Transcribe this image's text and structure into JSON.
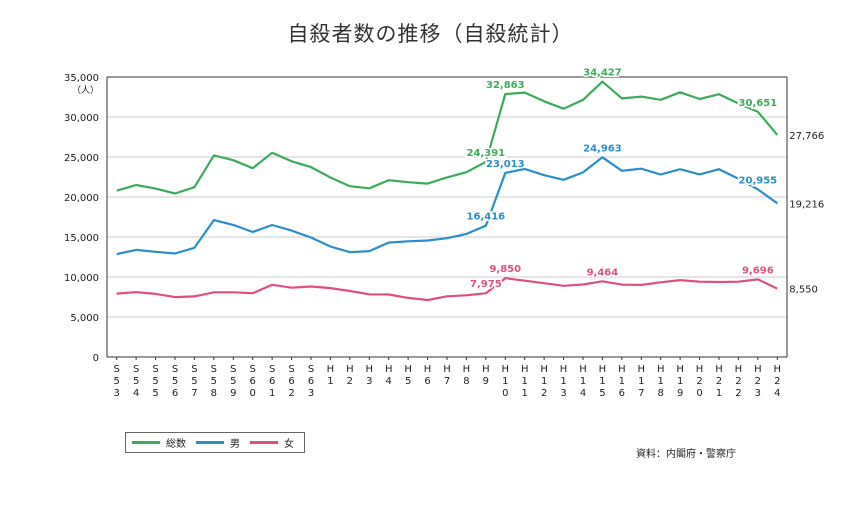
{
  "chart_data": {
    "type": "line",
    "title": "自殺者数の推移（自殺統計）",
    "ylabel": "（人）",
    "ylim": [
      0,
      35000
    ],
    "yticks": [
      "0",
      "5,000",
      "10,000",
      "15,000",
      "20,000",
      "25,000",
      "30,000",
      "35,000"
    ],
    "categories": [
      "S\n5\n3",
      "S\n5\n4",
      "S\n5\n5",
      "S\n5\n6",
      "S\n5\n7",
      "S\n5\n8",
      "S\n5\n9",
      "S\n6\n0",
      "S\n6\n1",
      "S\n6\n2",
      "S\n6\n3",
      "H\n1",
      "H\n2",
      "H\n3",
      "H\n4",
      "H\n5",
      "H\n6",
      "H\n7",
      "H\n8",
      "H\n9",
      "H\n1\n0",
      "H\n1\n1",
      "H\n1\n2",
      "H\n1\n3",
      "H\n1\n4",
      "H\n1\n5",
      "H\n1\n6",
      "H\n1\n7",
      "H\n1\n8",
      "H\n1\n9",
      "H\n2\n0",
      "H\n2\n1",
      "H\n2\n2",
      "H\n2\n3",
      "H\n2\n4"
    ],
    "series": [
      {
        "name": "総数",
        "color": "#3cab5b",
        "values": [
          20788,
          21503,
          21048,
          20434,
          21228,
          25202,
          24596,
          23599,
          25524,
          24460,
          23742,
          22436,
          21346,
          21084,
          22104,
          21851,
          21679,
          22445,
          23104,
          24391,
          32863,
          33048,
          31957,
          31042,
          32143,
          34427,
          32325,
          32552,
          32155,
          33093,
          32249,
          32845,
          31690,
          30651,
          27766
        ],
        "labels": [
          "",
          "",
          "",
          "",
          "",
          "",
          "",
          "",
          "",
          "",
          "",
          "",
          "",
          "",
          "",
          "",
          "",
          "",
          "",
          "24,391",
          "32,863",
          "",
          "",
          "",
          "",
          "34,427",
          "",
          "",
          "",
          "",
          "",
          "",
          "",
          "30,651",
          "27,766"
        ]
      },
      {
        "name": "男",
        "color": "#2b8dcb",
        "values": [
          12859,
          13386,
          13155,
          12942,
          13654,
          17116,
          16508,
          15624,
          16497,
          15802,
          14934,
          13818,
          13102,
          13242,
          14296,
          14468,
          14560,
          14853,
          15393,
          16416,
          23013,
          23512,
          22727,
          22144,
          23080,
          24963,
          23272,
          23540,
          22813,
          23478,
          22831,
          23472,
          22283,
          20955,
          19216
        ],
        "labels": [
          "",
          "",
          "",
          "",
          "",
          "",
          "",
          "",
          "",
          "",
          "",
          "",
          "",
          "",
          "",
          "",
          "",
          "",
          "",
          "16,416",
          "23,013",
          "",
          "",
          "",
          "",
          "24,963",
          "",
          "",
          "",
          "",
          "",
          "",
          "",
          "20,955",
          "19,216"
        ]
      },
      {
        "name": "女",
        "color": "#de4f85",
        "values": [
          7929,
          8117,
          7893,
          7492,
          7574,
          8086,
          8088,
          7975,
          9027,
          8658,
          8808,
          8618,
          8244,
          7842,
          7808,
          7383,
          7119,
          7592,
          7711,
          7975,
          9850,
          9536,
          9230,
          8898,
          9063,
          9464,
          9053,
          9012,
          9342,
          9615,
          9418,
          9373,
          9407,
          9696,
          8550
        ],
        "labels": [
          "",
          "",
          "",
          "",
          "",
          "",
          "",
          "",
          "",
          "",
          "",
          "",
          "",
          "",
          "",
          "",
          "",
          "",
          "",
          "7,975",
          "9,850",
          "",
          "",
          "",
          "",
          "9,464",
          "",
          "",
          "",
          "",
          "",
          "",
          "",
          "9,696",
          "8,550"
        ]
      }
    ]
  },
  "legend": {
    "total_label": "総数",
    "male_label": "男",
    "female_label": "女",
    "total_color": "#3cab5b",
    "male_color": "#2b8dcb",
    "female_color": "#de4f85"
  },
  "source": "資料：内閣府・警察庁"
}
